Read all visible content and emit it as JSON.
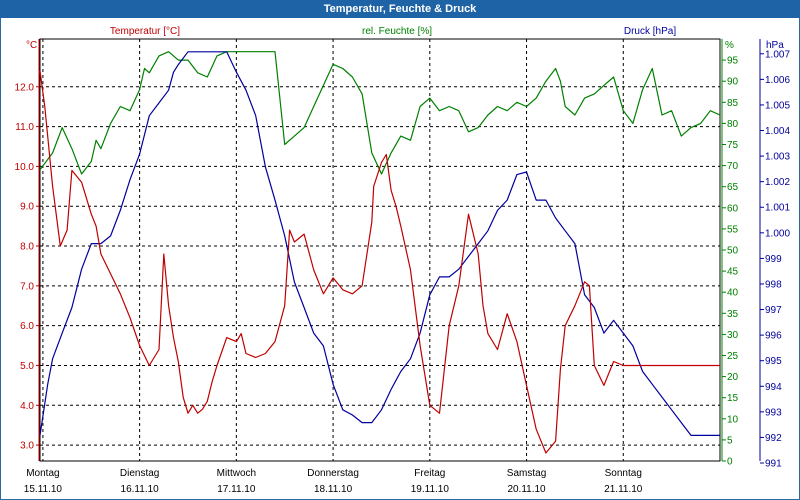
{
  "window": {
    "title": "Temperatur, Feuchte & Druck"
  },
  "chart_data": {
    "type": "line",
    "title": "Temperatur, Feuchte & Druck",
    "grid": true,
    "colors": {
      "temperature": "#c00000",
      "humidity": "#008000",
      "pressure": "#00009c",
      "title_bar": "#1e63a5"
    },
    "x_labels": [
      {
        "day": "Montag",
        "date": "15.11.10",
        "t": 0
      },
      {
        "day": "Dienstag",
        "date": "16.11.10",
        "t": 1
      },
      {
        "day": "Mittwoch",
        "date": "17.11.10",
        "t": 2
      },
      {
        "day": "Donnerstag",
        "date": "18.11.10",
        "t": 3
      },
      {
        "day": "Freitag",
        "date": "19.11.10",
        "t": 4
      },
      {
        "day": "Samstag",
        "date": "20.11.10",
        "t": 5
      },
      {
        "day": "Sonntag",
        "date": "21.11.10",
        "t": 6
      }
    ],
    "xlim": [
      -0.03,
      7.0
    ],
    "axes": {
      "temperature": {
        "label": "Temperatur [°C]",
        "unit": "°C",
        "ylim": [
          2.6,
          13.2
        ],
        "ticks": [
          "3.0",
          "4.0",
          "5.0",
          "6.0",
          "7.0",
          "8.0",
          "9.0",
          "10.0",
          "11.0",
          "12.0"
        ]
      },
      "humidity": {
        "label": "rel. Feuchte [%]",
        "unit": "%",
        "ylim": [
          0,
          100
        ],
        "ticks": [
          "0",
          "5",
          "10",
          "15",
          "20",
          "25",
          "30",
          "35",
          "40",
          "45",
          "50",
          "55",
          "60",
          "65",
          "70",
          "75",
          "80",
          "85",
          "90",
          "95"
        ]
      },
      "pressure": {
        "label": "Druck [hPa]",
        "unit": "hPa",
        "ylim": [
          991,
          1007.5
        ],
        "ticks": [
          "991",
          "992",
          "993",
          "994",
          "995",
          "996",
          "997",
          "998",
          "999",
          "1.000",
          "1.001",
          "1.002",
          "1.003",
          "1.004",
          "1.005",
          "1.006",
          "1.007"
        ]
      }
    },
    "series": [
      {
        "name": "Temperatur [°C]",
        "axis": "temperature",
        "x": [
          -0.03,
          0.02,
          0.1,
          0.18,
          0.25,
          0.3,
          0.4,
          0.5,
          0.55,
          0.6,
          0.7,
          0.8,
          0.9,
          1.0,
          1.1,
          1.2,
          1.25,
          1.3,
          1.35,
          1.4,
          1.45,
          1.5,
          1.55,
          1.6,
          1.65,
          1.7,
          1.75,
          1.8,
          1.9,
          2.0,
          2.05,
          2.1,
          2.2,
          2.3,
          2.4,
          2.5,
          2.55,
          2.6,
          2.7,
          2.8,
          2.9,
          3.0,
          3.1,
          3.2,
          3.3,
          3.4,
          3.42,
          3.5,
          3.55,
          3.6,
          3.65,
          3.7,
          3.8,
          3.9,
          4.0,
          4.1,
          4.2,
          4.3,
          4.4,
          4.5,
          4.55,
          4.6,
          4.7,
          4.8,
          4.9,
          5.0,
          5.1,
          5.2,
          5.3,
          5.35,
          5.4,
          5.5,
          5.6,
          5.65,
          5.7,
          5.8,
          5.9,
          6.0,
          6.1,
          6.2,
          6.3,
          6.35,
          6.4,
          6.5,
          6.55,
          6.6,
          6.7,
          6.75,
          6.8,
          6.9,
          6.95,
          7.0
        ],
        "values": [
          12.4,
          11.5,
          9.5,
          8.0,
          8.4,
          9.9,
          9.6,
          8.8,
          8.5,
          7.8,
          7.3,
          6.8,
          6.2,
          5.5,
          5.0,
          5.4,
          7.8,
          6.5,
          5.7,
          5.1,
          4.2,
          3.8,
          4.0,
          3.8,
          3.9,
          4.1,
          4.6,
          5.0,
          5.7,
          5.6,
          5.8,
          5.3,
          5.2,
          5.3,
          5.6,
          6.5,
          8.4,
          8.1,
          8.3,
          7.4,
          6.8,
          7.2,
          6.9,
          6.8,
          7.0,
          8.6,
          9.5,
          10.1,
          10.3,
          9.4,
          9.0,
          8.5,
          7.4,
          5.5,
          4.0,
          3.8,
          6.0,
          7.0,
          8.8,
          7.8,
          6.5,
          5.8,
          5.4,
          6.3,
          5.6,
          4.5,
          3.4,
          2.8,
          3.1,
          4.9,
          6.0,
          6.5,
          7.1,
          7.0,
          5.0,
          4.5,
          5.1,
          5.0,
          5.0,
          5.0,
          5.0,
          5.0,
          5.0,
          5.0,
          5.0,
          5.0,
          5.0,
          5.0,
          5.0,
          5.0,
          5.0,
          5.0
        ]
      },
      {
        "name": "rel. Feuchte [%]",
        "axis": "humidity",
        "x": [
          -0.03,
          0.1,
          0.2,
          0.3,
          0.4,
          0.5,
          0.55,
          0.6,
          0.7,
          0.8,
          0.9,
          1.0,
          1.05,
          1.1,
          1.2,
          1.3,
          1.4,
          1.5,
          1.6,
          1.7,
          1.8,
          1.9,
          2.0,
          2.1,
          2.2,
          2.3,
          2.4,
          2.5,
          2.6,
          2.7,
          2.8,
          2.9,
          3.0,
          3.1,
          3.2,
          3.3,
          3.4,
          3.5,
          3.6,
          3.7,
          3.8,
          3.9,
          4.0,
          4.1,
          4.2,
          4.3,
          4.4,
          4.5,
          4.6,
          4.7,
          4.8,
          4.9,
          5.0,
          5.1,
          5.2,
          5.3,
          5.35,
          5.4,
          5.5,
          5.6,
          5.7,
          5.8,
          5.9,
          6.0,
          6.1,
          6.2,
          6.3,
          6.4,
          6.5,
          6.6,
          6.7,
          6.8,
          6.9,
          7.0
        ],
        "values": [
          69,
          73,
          79,
          74,
          68,
          71,
          76,
          74,
          80,
          84,
          83,
          88,
          93,
          92,
          96,
          97,
          95,
          95,
          92,
          91,
          96,
          97,
          97,
          97,
          97,
          97,
          97,
          75,
          77,
          79,
          84,
          89,
          94,
          93,
          91,
          87,
          73,
          68,
          73,
          77,
          76,
          84,
          86,
          83,
          84,
          83,
          78,
          79,
          82,
          84,
          83,
          85,
          84,
          86,
          90,
          93,
          90,
          84,
          82,
          86,
          87,
          89,
          91,
          83,
          80,
          88,
          93,
          82,
          83,
          77,
          79,
          80,
          83,
          82
        ]
      },
      {
        "name": "Druck [hPa]",
        "axis": "pressure",
        "x": [
          -0.03,
          0.05,
          0.1,
          0.2,
          0.3,
          0.4,
          0.5,
          0.6,
          0.7,
          0.8,
          0.9,
          1.0,
          1.1,
          1.2,
          1.3,
          1.35,
          1.4,
          1.5,
          1.6,
          1.7,
          1.8,
          1.9,
          2.0,
          2.1,
          2.2,
          2.3,
          2.4,
          2.5,
          2.6,
          2.7,
          2.8,
          2.9,
          3.0,
          3.1,
          3.2,
          3.3,
          3.4,
          3.5,
          3.6,
          3.7,
          3.8,
          3.9,
          4.0,
          4.1,
          4.2,
          4.3,
          4.4,
          4.5,
          4.6,
          4.7,
          4.8,
          4.9,
          5.0,
          5.1,
          5.2,
          5.3,
          5.4,
          5.5,
          5.6,
          5.7,
          5.8,
          5.9,
          6.0,
          6.1,
          6.2,
          6.3,
          6.4,
          6.5,
          6.6,
          6.7,
          6.8,
          6.9,
          7.0
        ],
        "values": [
          992,
          994,
          995,
          996,
          997,
          998.5,
          999.5,
          999.5,
          999.8,
          1000.8,
          1002,
          1003,
          1004.5,
          1005,
          1005.5,
          1006.2,
          1006.5,
          1007,
          1007,
          1007,
          1007,
          1007,
          1006.2,
          1005.5,
          1004.5,
          1002.5,
          1001.2,
          999.8,
          998,
          997,
          996,
          995.5,
          994,
          993,
          992.8,
          992.5,
          992.5,
          993,
          993.8,
          994.5,
          995,
          996,
          997.5,
          998.2,
          998.2,
          998.5,
          999,
          999.5,
          1000,
          1000.8,
          1001.2,
          1002.2,
          1002.3,
          1001.2,
          1001.2,
          1000.5,
          1000,
          999.5,
          997.5,
          997,
          996,
          996.5,
          996,
          995.5,
          994.5,
          994,
          993.5,
          993,
          992.5,
          992,
          992,
          992,
          992
        ]
      }
    ]
  }
}
